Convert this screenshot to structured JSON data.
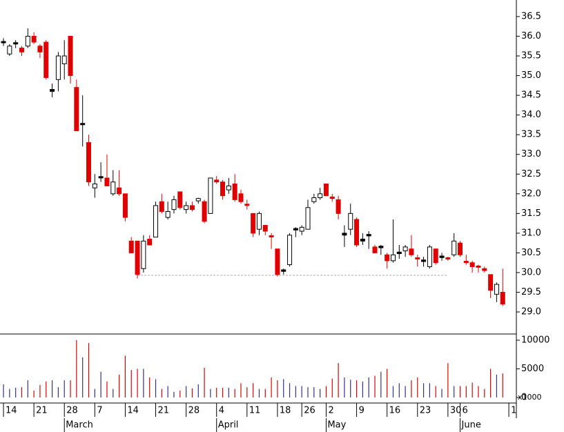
{
  "chart_data": {
    "type": "candlestick",
    "candles": [
      [
        35.85,
        35.95,
        35.75,
        35.85
      ],
      [
        35.55,
        35.8,
        35.5,
        35.75
      ],
      [
        35.8,
        35.9,
        35.7,
        35.82
      ],
      [
        35.7,
        35.75,
        35.5,
        35.6
      ],
      [
        35.75,
        36.2,
        35.7,
        36.0
      ],
      [
        36.0,
        36.1,
        35.8,
        35.85
      ],
      [
        35.75,
        35.8,
        35.45,
        35.6
      ],
      [
        35.85,
        35.9,
        34.9,
        34.95
      ],
      [
        34.6,
        34.8,
        34.45,
        34.65
      ],
      [
        34.9,
        35.6,
        34.6,
        35.5
      ],
      [
        35.3,
        35.9,
        34.9,
        35.5
      ],
      [
        36.0,
        36.0,
        34.8,
        35.0
      ],
      [
        34.7,
        34.9,
        33.6,
        33.6
      ],
      [
        33.75,
        34.5,
        33.2,
        33.77
      ],
      [
        33.3,
        33.5,
        32.2,
        32.3
      ],
      [
        32.15,
        32.5,
        31.9,
        32.25
      ],
      [
        32.4,
        32.8,
        32.3,
        32.42
      ],
      [
        32.4,
        33.0,
        32.2,
        32.2
      ],
      [
        32.0,
        32.6,
        31.95,
        32.3
      ],
      [
        32.15,
        32.6,
        31.95,
        32.0
      ],
      [
        32.0,
        32.0,
        31.3,
        31.4
      ],
      [
        30.8,
        30.9,
        30.5,
        30.5
      ],
      [
        30.8,
        30.8,
        29.85,
        29.95
      ],
      [
        30.1,
        30.95,
        30.0,
        30.8
      ],
      [
        30.85,
        30.95,
        30.7,
        30.7
      ],
      [
        30.9,
        31.8,
        30.9,
        31.7
      ],
      [
        31.8,
        32.0,
        31.5,
        31.55
      ],
      [
        31.4,
        31.8,
        31.35,
        31.55
      ],
      [
        31.6,
        31.95,
        31.5,
        31.85
      ],
      [
        32.05,
        32.05,
        31.6,
        31.65
      ],
      [
        31.6,
        31.8,
        31.5,
        31.7
      ],
      [
        31.7,
        31.8,
        31.55,
        31.6
      ],
      [
        31.82,
        31.9,
        31.75,
        31.88
      ],
      [
        31.8,
        31.85,
        31.25,
        31.3
      ],
      [
        31.5,
        32.4,
        31.5,
        32.4
      ],
      [
        32.35,
        32.45,
        32.25,
        32.3
      ],
      [
        32.3,
        32.35,
        31.85,
        31.95
      ],
      [
        32.1,
        32.4,
        32.0,
        32.2
      ],
      [
        32.25,
        32.5,
        31.8,
        31.85
      ],
      [
        32.0,
        32.1,
        31.75,
        31.8
      ],
      [
        31.72,
        31.85,
        31.6,
        31.7
      ],
      [
        31.5,
        31.5,
        30.9,
        31.0
      ],
      [
        31.1,
        31.55,
        30.95,
        31.5
      ],
      [
        31.2,
        31.2,
        30.95,
        31.05
      ],
      [
        30.92,
        31.0,
        30.6,
        30.9
      ],
      [
        30.6,
        30.6,
        29.9,
        29.95
      ],
      [
        30.03,
        30.1,
        29.95,
        30.07
      ],
      [
        30.2,
        31.0,
        30.15,
        30.95
      ],
      [
        31.08,
        31.15,
        30.9,
        31.12
      ],
      [
        31.05,
        31.2,
        30.95,
        31.15
      ],
      [
        31.1,
        31.85,
        31.1,
        31.65
      ],
      [
        31.8,
        32.0,
        31.75,
        31.9
      ],
      [
        31.9,
        32.15,
        31.85,
        32.0
      ],
      [
        32.25,
        32.25,
        31.95,
        31.95
      ],
      [
        31.92,
        32.0,
        31.8,
        31.88
      ],
      [
        31.85,
        31.95,
        31.35,
        31.5
      ],
      [
        30.95,
        31.2,
        30.65,
        31.0
      ],
      [
        31.1,
        31.75,
        30.95,
        31.5
      ],
      [
        31.35,
        31.4,
        30.65,
        30.7
      ],
      [
        30.8,
        31.0,
        30.7,
        30.85
      ],
      [
        30.93,
        31.05,
        30.6,
        30.97
      ],
      [
        30.65,
        30.7,
        30.5,
        30.5
      ],
      [
        30.63,
        30.7,
        30.45,
        30.67
      ],
      [
        30.45,
        30.5,
        30.1,
        30.3
      ],
      [
        30.3,
        31.35,
        30.25,
        30.45
      ],
      [
        30.48,
        30.7,
        30.35,
        30.52
      ],
      [
        30.55,
        30.7,
        30.4,
        30.65
      ],
      [
        30.6,
        30.95,
        30.4,
        30.45
      ],
      [
        30.36,
        30.45,
        30.15,
        30.33
      ],
      [
        30.28,
        30.4,
        30.15,
        30.32
      ],
      [
        30.15,
        30.7,
        30.1,
        30.65
      ],
      [
        30.6,
        30.6,
        30.2,
        30.25
      ],
      [
        30.38,
        30.5,
        30.3,
        30.42
      ],
      [
        30.36,
        30.4,
        30.3,
        30.34
      ],
      [
        30.45,
        31.0,
        30.4,
        30.8
      ],
      [
        30.75,
        30.8,
        30.4,
        30.45
      ],
      [
        30.27,
        30.45,
        30.2,
        30.25
      ],
      [
        30.25,
        30.3,
        30.0,
        30.15
      ],
      [
        30.15,
        30.2,
        30.0,
        30.13
      ],
      [
        30.1,
        30.15,
        30.0,
        30.05
      ],
      [
        29.95,
        29.95,
        29.35,
        29.55
      ],
      [
        29.45,
        29.75,
        29.25,
        29.7
      ],
      [
        29.5,
        30.1,
        29.15,
        29.2
      ]
    ],
    "volume": [
      2300,
      1500,
      1700,
      1800,
      3000,
      1200,
      2200,
      2800,
      3000,
      1800,
      3000,
      3000,
      10000,
      7000,
      9500,
      1500,
      4500,
      2800,
      1500,
      4000,
      7300,
      4800,
      5000,
      5000,
      3500,
      3200,
      1500,
      2000,
      1000,
      1200,
      2000,
      1600,
      2300,
      5200,
      1500,
      1700,
      1700,
      1700,
      1500,
      2500,
      1800,
      2500,
      1500,
      1500,
      3500,
      3000,
      3200,
      2500,
      2000,
      2000,
      1800,
      1800,
      1500,
      2000,
      3300,
      6000,
      3500,
      3100,
      3000,
      2800,
      3500,
      3800,
      4500,
      5000,
      2000,
      2500,
      2000,
      3000,
      3500,
      2500,
      2500,
      2000,
      1500,
      6000,
      2000,
      2000,
      2000,
      2600,
      2000,
      1500,
      5000,
      4000,
      4200
    ],
    "up_color": "#000000",
    "down_color": "#e00000",
    "volume_up_color": "#303090",
    "xlim": [
      -0.57,
      84.24
    ],
    "ylim": [
      28.44,
      36.92
    ],
    "yticks": [
      {
        "value": 29,
        "label": "29.0"
      },
      29.5,
      {
        "value": 30,
        "label": "30.0"
      },
      30.5,
      {
        "value": 31,
        "label": "31.0"
      },
      31.5,
      {
        "value": 32,
        "label": "32.0"
      },
      32.5,
      {
        "value": 33,
        "label": "33.0"
      },
      33.5,
      {
        "value": 34,
        "label": "34.0"
      },
      34.5,
      {
        "value": 35,
        "label": "35.0"
      },
      35.5,
      {
        "value": 36,
        "label": "36.0"
      },
      36.5
    ],
    "volume_ylim": [
      -960,
      11080
    ],
    "volume_yticks": [
      0,
      5000,
      10000
    ],
    "volume_unit": "x1000",
    "xticks": [
      {
        "value": 0,
        "label": "14"
      },
      {
        "value": 5,
        "label": "21"
      },
      {
        "value": 10,
        "label": "28"
      },
      {
        "value": 15,
        "label": "7"
      },
      {
        "value": 20,
        "label": "14"
      },
      {
        "value": 25,
        "label": "21"
      },
      {
        "value": 30,
        "label": "28"
      },
      {
        "value": 35,
        "label": "4"
      },
      {
        "value": 40,
        "label": "11"
      },
      {
        "value": 45,
        "label": "18"
      },
      {
        "value": 49,
        "label": "26"
      },
      {
        "value": 53,
        "label": "2"
      },
      {
        "value": 58,
        "label": "9"
      },
      {
        "value": 63,
        "label": "16"
      },
      {
        "value": 68,
        "label": "23"
      },
      {
        "value": 73,
        "label": "30"
      },
      {
        "value": 75,
        "label": "6"
      },
      {
        "value": 83,
        "label": "1"
      }
    ],
    "months": [
      {
        "value": 10,
        "label": "March"
      },
      {
        "value": 35,
        "label": "April"
      },
      {
        "value": 53,
        "label": "May"
      },
      {
        "value": 75,
        "label": "June"
      }
    ],
    "reference_line": {
      "y": 29.93,
      "x": [
        22,
        73
      ]
    }
  }
}
